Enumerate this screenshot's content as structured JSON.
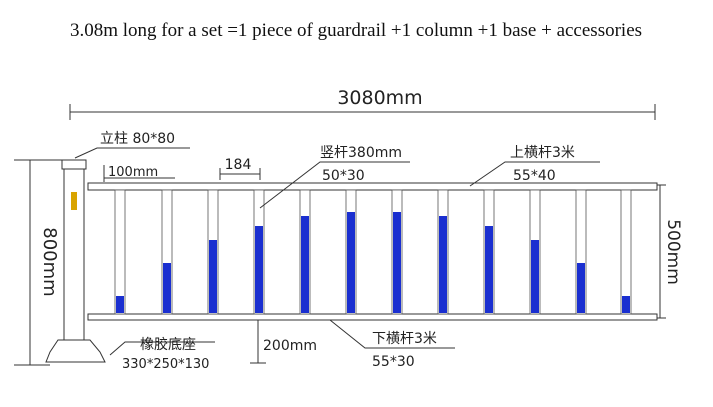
{
  "header": {
    "title": "3.08m long for a set =1 piece of guardrail +1 column +1 base + accessories"
  },
  "dimensions": {
    "total_length": "3080mm",
    "total_height": "800mm",
    "rail_height": "500mm",
    "post_offset": "100mm",
    "post_spacing": "184",
    "ground_gap": "200mm"
  },
  "labels": {
    "column": "立柱 80*80",
    "vertical_bar": "竖杆380mm",
    "vertical_bar_size": "50*30",
    "top_rail": "上横杆3米",
    "top_rail_size": "55*40",
    "bottom_rail": "下横杆3米",
    "bottom_rail_size": "55*30",
    "base": "橡胶底座",
    "base_size": "330*250*130"
  }
}
